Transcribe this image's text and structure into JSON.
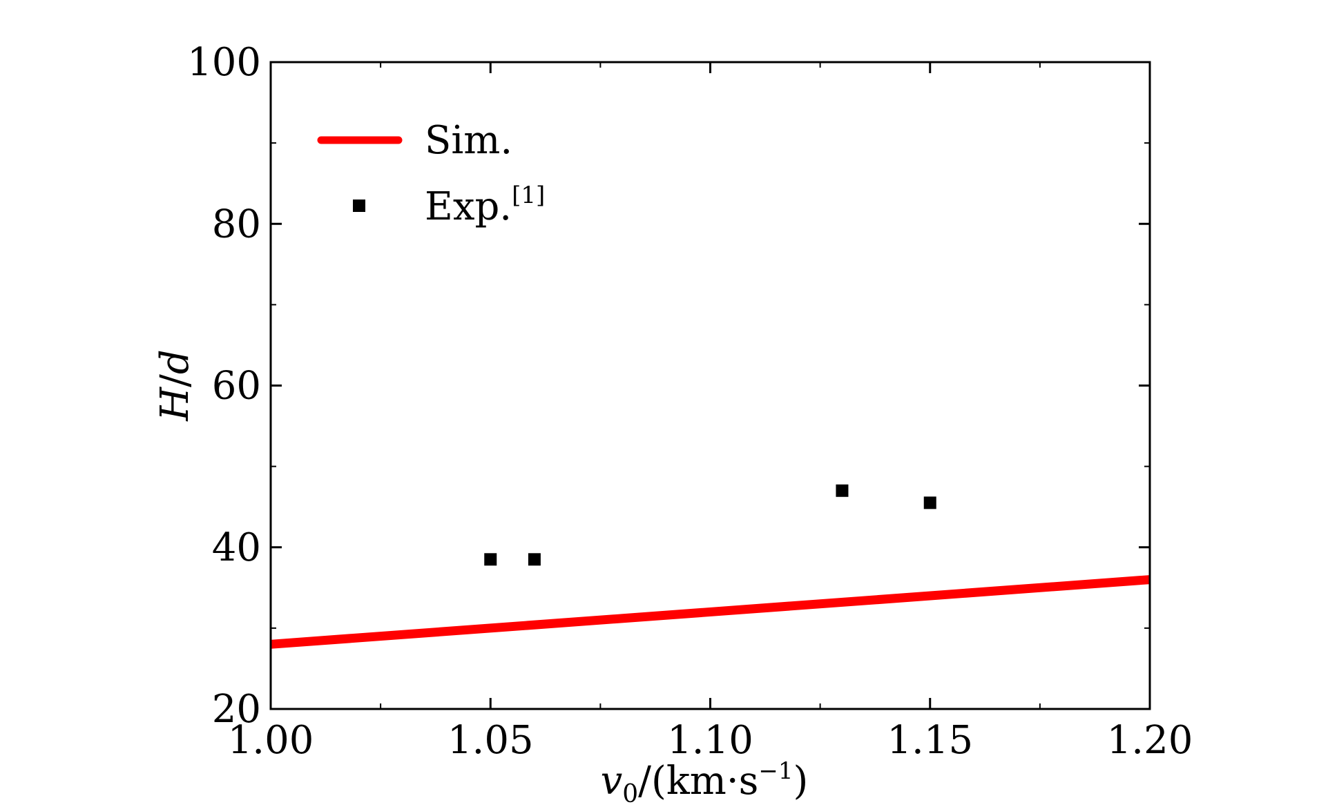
{
  "chart_data": {
    "type": "scatter",
    "xlabel": {
      "var": "v",
      "sub": "0",
      "unit_open": "/(km·s",
      "unit_sup": "−1",
      "unit_close": ")"
    },
    "ylabel": {
      "var1": "H",
      "sep": "/",
      "var2": "d"
    },
    "xlim": [
      1.0,
      1.2
    ],
    "ylim": [
      20,
      100
    ],
    "xticks": [
      1.0,
      1.05,
      1.1,
      1.15,
      1.2
    ],
    "xtick_labels": [
      "1.00",
      "1.05",
      "1.10",
      "1.15",
      "1.20"
    ],
    "yticks": [
      20,
      40,
      60,
      80,
      100
    ],
    "ytick_labels": [
      "20",
      "40",
      "60",
      "80",
      "100"
    ],
    "x_minor_step": 0.025,
    "y_minor_step": 10,
    "grid": false,
    "legend_position": "top-left",
    "series": [
      {
        "name": "Sim.",
        "kind": "line",
        "color": "#ff0000",
        "x": [
          1.0,
          1.2
        ],
        "y": [
          28.0,
          36.0
        ]
      },
      {
        "name": "Exp.",
        "name_sup": "[1]",
        "kind": "scatter",
        "marker": "square",
        "color": "#000000",
        "x": [
          1.05,
          1.06,
          1.13,
          1.15
        ],
        "y": [
          38.5,
          38.5,
          47.0,
          45.5
        ]
      }
    ]
  }
}
